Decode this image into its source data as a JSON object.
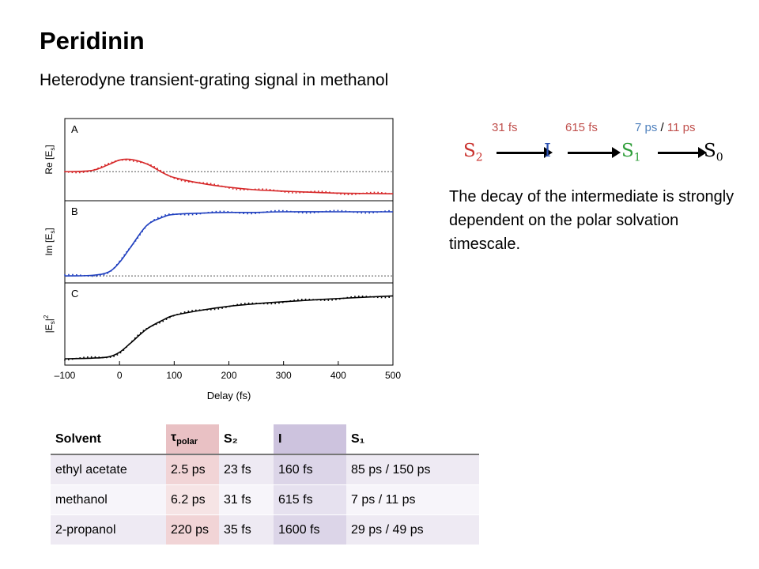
{
  "page": {
    "title": "Peridinin",
    "subtitle": "Heterodyne transient-grating signal in methanol",
    "description": "The decay of the intermediate is strongly dependent on the polar solvation timescale."
  },
  "scheme": {
    "rates": {
      "s2_to_i": "31 fs",
      "i_to_s1": "615 fs",
      "s1_to_s0_a": "7 ps",
      "sep": "/",
      "s1_to_s0_b": "11 ps"
    },
    "states": [
      {
        "base": "S",
        "sub": "2",
        "color": "#c9302c"
      },
      {
        "base": "I",
        "sub": "",
        "color": "#2a4fb0"
      },
      {
        "base": "S",
        "sub": "1",
        "color": "#2f9e3a"
      },
      {
        "base": "S",
        "sub": "0",
        "color": "#000000"
      }
    ],
    "colors": {
      "rate_red": "#c0504d",
      "rate_blue": "#4f81bd"
    }
  },
  "chart_data": {
    "type": "line",
    "xlabel": "Delay (fs)",
    "xlim": [
      -100,
      500
    ],
    "xticks": [
      "–100",
      "0",
      "100",
      "200",
      "300",
      "400",
      "500"
    ],
    "x": [
      -100,
      -50,
      -20,
      0,
      20,
      50,
      80,
      100,
      150,
      200,
      250,
      300,
      400,
      500
    ],
    "panels": [
      {
        "letter": "A",
        "ylabel": "Re [E",
        "ylabel_sub": "s",
        "ylabel_end": "]",
        "color": "#d62728",
        "values": [
          0.35,
          0.37,
          0.46,
          0.53,
          0.54,
          0.47,
          0.33,
          0.26,
          0.17,
          0.11,
          0.07,
          0.05,
          0.02,
          0.01
        ]
      },
      {
        "letter": "B",
        "ylabel": "Im [E",
        "ylabel_sub": "s",
        "ylabel_end": "]",
        "color": "#1f3fbf",
        "values": [
          0.01,
          0.02,
          0.07,
          0.22,
          0.45,
          0.79,
          0.92,
          0.96,
          0.98,
          0.99,
          0.99,
          1.0,
          1.0,
          1.0
        ]
      },
      {
        "letter": "C",
        "ylabel": "|E",
        "ylabel_sub": "s",
        "ylabel_end": "|",
        "ylabel_sup": "2",
        "color": "#000000",
        "values": [
          0.0,
          0.01,
          0.03,
          0.1,
          0.24,
          0.46,
          0.6,
          0.67,
          0.75,
          0.81,
          0.85,
          0.88,
          0.93,
          0.97
        ]
      }
    ]
  },
  "table": {
    "headers": [
      "Solvent",
      "τ",
      "S₂",
      "I",
      "S₁"
    ],
    "tau_sub": "polar",
    "rows": [
      [
        "ethyl acetate",
        "2.5 ps",
        "23 fs",
        "160 fs",
        "85 ps / 150 ps"
      ],
      [
        "methanol",
        "6.2 ps",
        "31 fs",
        "615 fs",
        "7 ps / 11 ps"
      ],
      [
        "2-propanol",
        "220 ps",
        "35 fs",
        "1600 fs",
        "29 ps / 49 ps"
      ]
    ]
  }
}
